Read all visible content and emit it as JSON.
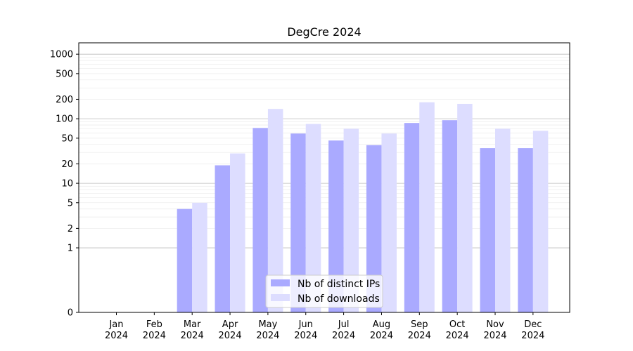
{
  "chart_data": {
    "type": "bar",
    "title": "DegCre 2024",
    "xlabel": "",
    "ylabel": "",
    "yscale": "symlog",
    "ylim": [
      0,
      1500
    ],
    "yticks": [
      0,
      1,
      2,
      5,
      10,
      20,
      50,
      100,
      200,
      500,
      1000
    ],
    "ytick_labels": [
      "0",
      "1",
      "2",
      "5",
      "10",
      "20",
      "50",
      "100",
      "200",
      "500",
      "1000"
    ],
    "categories": [
      [
        "Jan",
        "2024"
      ],
      [
        "Feb",
        "2024"
      ],
      [
        "Mar",
        "2024"
      ],
      [
        "Apr",
        "2024"
      ],
      [
        "May",
        "2024"
      ],
      [
        "Jun",
        "2024"
      ],
      [
        "Jul",
        "2024"
      ],
      [
        "Aug",
        "2024"
      ],
      [
        "Sep",
        "2024"
      ],
      [
        "Oct",
        "2024"
      ],
      [
        "Nov",
        "2024"
      ],
      [
        "Dec",
        "2024"
      ]
    ],
    "series": [
      {
        "name": "Nb of distinct IPs",
        "color": "#aaaaff",
        "values": [
          0,
          0,
          4,
          19,
          72,
          59,
          46,
          39,
          86,
          95,
          35,
          35
        ]
      },
      {
        "name": "Nb of downloads",
        "color": "#ddddff",
        "values": [
          0,
          0,
          5,
          29,
          142,
          83,
          70,
          59,
          180,
          170,
          70,
          65
        ]
      }
    ],
    "grid": true,
    "legend_position": "lower-center"
  }
}
